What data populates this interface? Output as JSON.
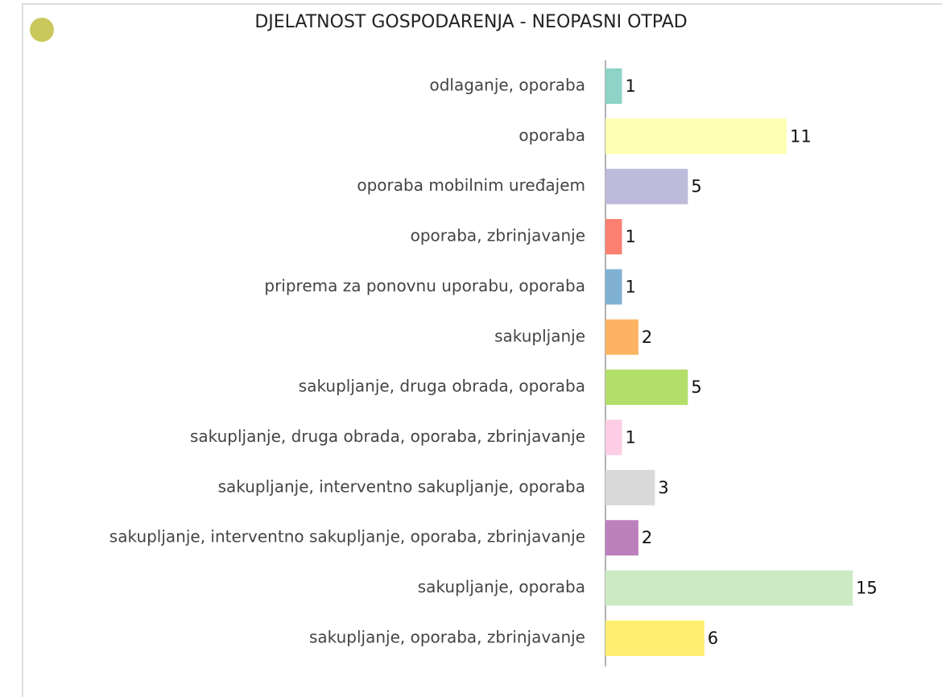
{
  "chart_data": {
    "type": "bar",
    "orientation": "horizontal",
    "title": "DJELATNOST GOSPODARENJA - NEOPASNI OTPAD",
    "categories": [
      "odlaganje, oporaba",
      "oporaba",
      "oporaba mobilnim uređajem",
      "oporaba, zbrinjavanje",
      "priprema za ponovnu uporabu, oporaba",
      "sakupljanje",
      "sakupljanje, druga obrada, oporaba",
      "sakupljanje, druga obrada, oporaba, zbrinjavanje",
      "sakupljanje, interventno sakupljanje, oporaba",
      "sakupljanje, interventno sakupljanje, oporaba, zbrinjavanje",
      "sakupljanje, oporaba",
      "sakupljanje, oporaba, zbrinjavanje"
    ],
    "values": [
      1,
      11,
      5,
      1,
      1,
      2,
      5,
      1,
      3,
      2,
      15,
      6
    ],
    "colors": [
      "#8dd3c7",
      "#ffffb3",
      "#bebada",
      "#fb8072",
      "#80b1d3",
      "#fdb462",
      "#b3de69",
      "#fccde5",
      "#d9d9d9",
      "#bc80bd",
      "#ccebc5",
      "#ffed6f"
    ],
    "data_labels": true
  }
}
